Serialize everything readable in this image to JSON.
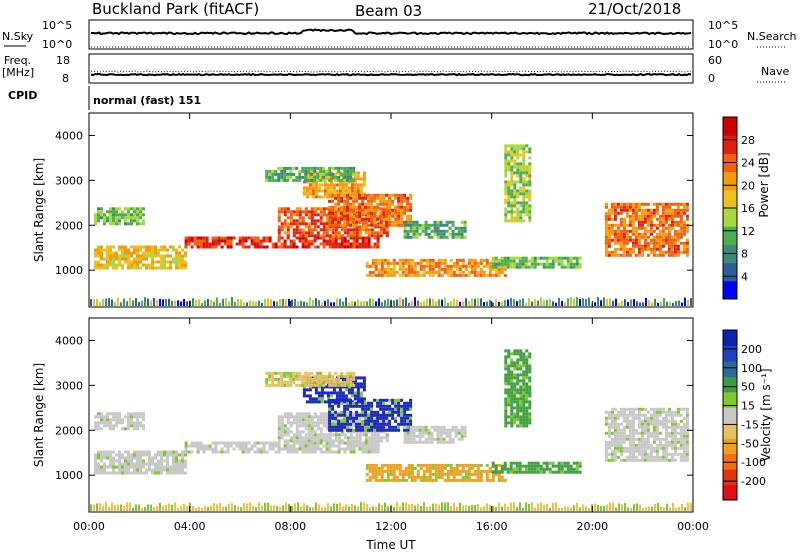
{
  "header": {
    "station": "Buckland Park (fitACF)",
    "beam": "Beam 03",
    "date": "21/Oct/2018"
  },
  "noise_panel": {
    "left_label": "N.Sky",
    "right_label": "N.Search",
    "left_ticks": [
      "10^5",
      "10^0"
    ],
    "right_ticks": [
      "10^5",
      "10^0"
    ]
  },
  "freq_panel": {
    "left_label_1": "Freq.",
    "left_label_2": "[MHz]",
    "right_label": "Nave",
    "left_ticks": [
      "18",
      "8"
    ],
    "right_ticks": [
      "60",
      "0"
    ]
  },
  "cpid": {
    "label": "CPID",
    "value": "normal (fast) 151"
  },
  "chart_data": [
    {
      "type": "heatmap",
      "name": "Power",
      "ylabel": "Slant Range [km]",
      "xlabel": "Time UT",
      "xlim": [
        "00:00",
        "00:00"
      ],
      "ylim": [
        180,
        4500
      ],
      "x_ticks": [
        "00:00",
        "04:00",
        "08:00",
        "12:00",
        "16:00",
        "20:00",
        "00:00"
      ],
      "y_ticks": [
        1000,
        2000,
        3000,
        4000
      ],
      "colorbar": {
        "label": "Power [dB]",
        "ticks": [
          4,
          8,
          12,
          16,
          20,
          24,
          28
        ],
        "colors": [
          "#0000ff",
          "#2a5f9e",
          "#3a8a7a",
          "#4cae4c",
          "#a8d840",
          "#f0c020",
          "#f59a10",
          "#f06010",
          "#e02010",
          "#d00000"
        ]
      }
    },
    {
      "type": "heatmap",
      "name": "Velocity",
      "ylabel": "Slant Range [km]",
      "xlabel": "Time UT",
      "xlim": [
        "00:00",
        "00:00"
      ],
      "ylim": [
        180,
        4500
      ],
      "x_ticks": [
        "00:00",
        "04:00",
        "08:00",
        "12:00",
        "16:00",
        "20:00",
        "00:00"
      ],
      "y_ticks": [
        1000,
        2000,
        3000,
        4000
      ],
      "colorbar": {
        "label": "Velocity [m s⁻¹]",
        "ticks": [
          200,
          100,
          50,
          15,
          -15,
          -50,
          -100,
          -200
        ],
        "colors": [
          "#1020b0",
          "#2040c0",
          "#2a6a9a",
          "#3a9a4a",
          "#80c830",
          "#c8c8c8",
          "#e8c060",
          "#f0a020",
          "#f07010",
          "#e83010",
          "#e01010"
        ]
      }
    }
  ],
  "colors": {
    "gray": "#c8c8c8",
    "axis": "#000000"
  }
}
